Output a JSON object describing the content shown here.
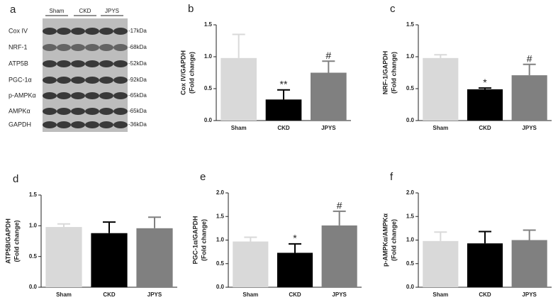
{
  "blot": {
    "panel_label": "a",
    "lanes": [
      "Sham",
      "CKD",
      "JPYS"
    ],
    "rows": [
      {
        "protein": "Cox IV",
        "size": "-17kDa"
      },
      {
        "protein": "NRF-1",
        "size": "-68kDa"
      },
      {
        "protein": "ATP5B",
        "size": "-52kDa"
      },
      {
        "protein": "PGC-1α",
        "size": "-92kDa"
      },
      {
        "protein": "p-AMPKα",
        "size": "-65kDa"
      },
      {
        "protein": "AMPKα",
        "size": "-65kDa"
      },
      {
        "protein": "GAPDH",
        "size": "-36kDa"
      }
    ]
  },
  "chart_data": [
    {
      "type": "bar",
      "panel_label": "b",
      "ylabel": [
        "Cox IV/GAPDH",
        "(Fold change)"
      ],
      "categories": [
        "Sham",
        "CKD",
        "JPYS"
      ],
      "colors": [
        "#d9d9d9",
        "#000000",
        "#808080"
      ],
      "values": [
        0.98,
        0.33,
        0.75
      ],
      "errors": [
        0.37,
        0.15,
        0.18
      ],
      "annotations": [
        null,
        "**",
        "#"
      ],
      "ylim": [
        0,
        1.5
      ],
      "yticks": [
        {
          "value": 0,
          "label": "0.0"
        },
        0.5,
        {
          "value": 1,
          "label": "1.0"
        },
        1.5
      ]
    },
    {
      "type": "bar",
      "panel_label": "c",
      "ylabel": [
        "NRF-1/GAPDH",
        "(Fold change)"
      ],
      "categories": [
        "Sham",
        "CKD",
        "JPYS"
      ],
      "colors": [
        "#d9d9d9",
        "#000000",
        "#808080"
      ],
      "values": [
        0.98,
        0.49,
        0.71
      ],
      "errors": [
        0.05,
        0.02,
        0.17
      ],
      "annotations": [
        null,
        "*",
        "#"
      ],
      "ylim": [
        0,
        1.5
      ],
      "yticks": [
        {
          "value": 0,
          "label": "0.0"
        },
        0.5,
        {
          "value": 1,
          "label": "1.0"
        },
        1.5
      ]
    },
    {
      "type": "bar",
      "panel_label": "d",
      "ylabel": [
        "ATP5B/GAPDH",
        "(Fold change)"
      ],
      "categories": [
        "Sham",
        "CKD",
        "JPYS"
      ],
      "colors": [
        "#d9d9d9",
        "#000000",
        "#808080"
      ],
      "values": [
        0.98,
        0.88,
        0.96
      ],
      "errors": [
        0.05,
        0.18,
        0.18
      ],
      "annotations": [
        null,
        null,
        null
      ],
      "ylim": [
        0,
        1.5
      ],
      "yticks": [
        {
          "value": 0,
          "label": "0.0"
        },
        0.5,
        {
          "value": 1,
          "label": "1.0"
        },
        1.5
      ]
    },
    {
      "type": "bar",
      "panel_label": "e",
      "ylabel": [
        "PGC-1α/GAPDH",
        "(Fold change)"
      ],
      "categories": [
        "Sham",
        "CKD",
        "JPYS"
      ],
      "colors": [
        "#d9d9d9",
        "#000000",
        "#808080"
      ],
      "values": [
        0.97,
        0.73,
        1.31
      ],
      "errors": [
        0.09,
        0.19,
        0.3
      ],
      "annotations": [
        null,
        "*",
        "#"
      ],
      "ylim": [
        0,
        2
      ],
      "yticks": [
        {
          "value": 0,
          "label": "0.0"
        },
        0.5,
        {
          "value": 1,
          "label": "1.0"
        },
        1.5,
        {
          "value": 2,
          "label": "2.0"
        }
      ]
    },
    {
      "type": "bar",
      "panel_label": "f",
      "ylabel": [
        "p-AMPKα/AMPKα",
        "(Fold change)"
      ],
      "categories": [
        "Sham",
        "CKD",
        "JPYS"
      ],
      "colors": [
        "#d9d9d9",
        "#000000",
        "#808080"
      ],
      "values": [
        0.98,
        0.93,
        1.0
      ],
      "errors": [
        0.19,
        0.25,
        0.21
      ],
      "annotations": [
        null,
        null,
        null
      ],
      "ylim": [
        0,
        2
      ],
      "yticks": [
        {
          "value": 0,
          "label": "0.0"
        },
        0.5,
        {
          "value": 1,
          "label": "1.0"
        },
        1.5,
        {
          "value": 2,
          "label": "2.0"
        }
      ]
    }
  ]
}
